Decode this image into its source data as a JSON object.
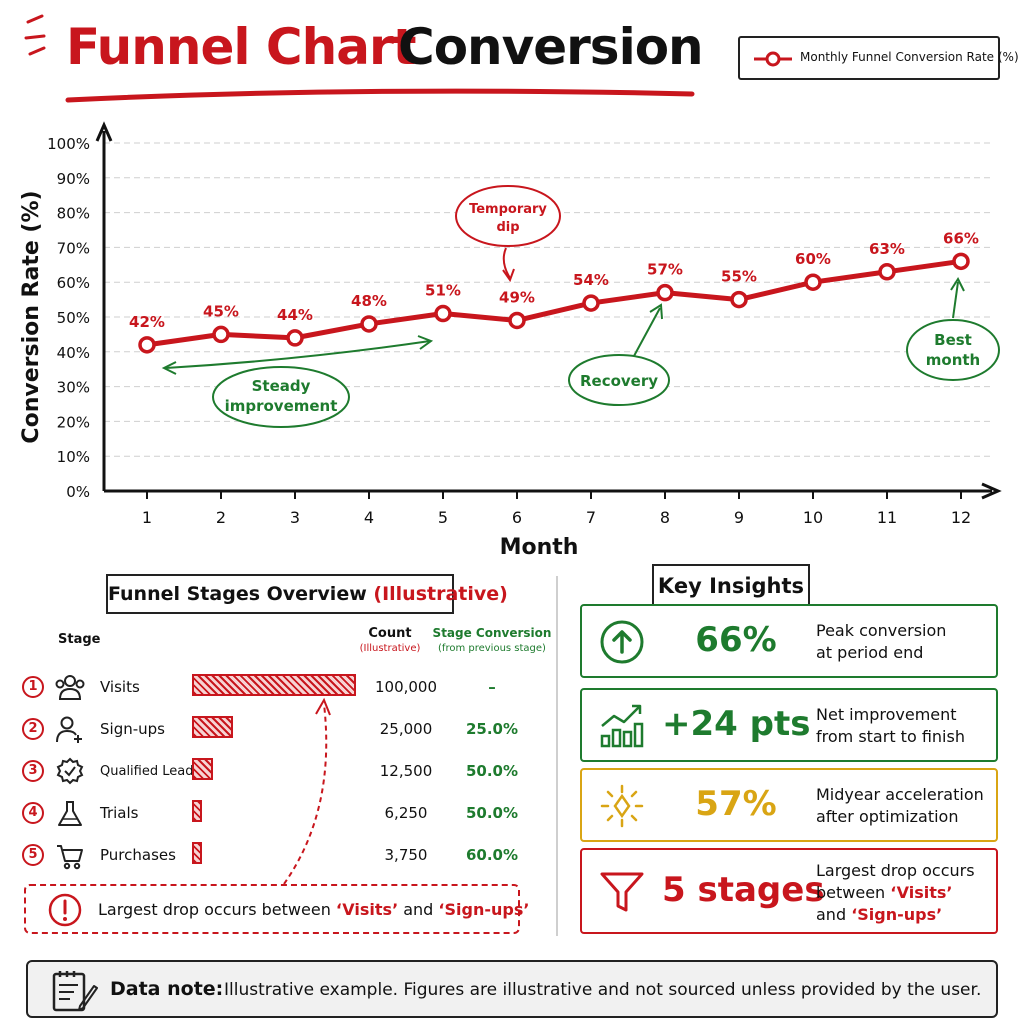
{
  "title": {
    "part1": "Funnel Chart",
    "part2": "Conversion"
  },
  "legend": {
    "label": "Monthly Funnel Conversion Rate (%)"
  },
  "colors": {
    "accent": "#c8161d",
    "green": "#1e7b2e",
    "gold": "#d9a514",
    "ink": "#111111"
  },
  "chart_data": {
    "type": "line",
    "x": [
      1,
      2,
      3,
      4,
      5,
      6,
      7,
      8,
      9,
      10,
      11,
      12
    ],
    "series": [
      {
        "name": "Monthly Funnel Conversion Rate (%)",
        "values": [
          42,
          45,
          44,
          48,
          51,
          49,
          54,
          57,
          55,
          60,
          63,
          66
        ]
      }
    ],
    "data_labels": [
      "42%",
      "45%",
      "44%",
      "48%",
      "51%",
      "49%",
      "54%",
      "57%",
      "55%",
      "60%",
      "63%",
      "66%"
    ],
    "xlabel": "Month",
    "ylabel": "Conversion Rate (%)",
    "ylim": [
      0,
      100
    ],
    "yticks": [
      "0%",
      "10%",
      "20%",
      "30%",
      "40%",
      "50%",
      "60%",
      "70%",
      "80%",
      "90%",
      "100%"
    ],
    "grid": true,
    "legend_position": "top-right",
    "annotations": [
      {
        "text_line1": "Steady",
        "text_line2": "improvement",
        "color": "green"
      },
      {
        "text_line1": "Temporary",
        "text_line2": "dip",
        "color": "red"
      },
      {
        "text_line1": "Recovery",
        "text_line2": "",
        "color": "green"
      },
      {
        "text_line1": "Best",
        "text_line2": "month",
        "color": "green"
      }
    ]
  },
  "funnel": {
    "title": "Funnel Stages Overview",
    "title_suffix": "(Illustrative)",
    "col_stage": "Stage",
    "col_count": "Count",
    "col_count_sub": "(Illustrative)",
    "col_conv": "Stage Conversion",
    "col_conv_sub": "(from previous stage)",
    "stages": [
      {
        "num": "1",
        "label": "Visits",
        "count": "100,000",
        "conv": "–",
        "icon": "users-icon",
        "value": 100000
      },
      {
        "num": "2",
        "label": "Sign-ups",
        "count": "25,000",
        "conv": "25.0%",
        "icon": "add-user-icon",
        "value": 25000
      },
      {
        "num": "3",
        "label": "Qualified Leads",
        "count": "12,500",
        "conv": "50.0%",
        "icon": "badge-check-icon",
        "value": 12500
      },
      {
        "num": "4",
        "label": "Trials",
        "count": "6,250",
        "conv": "50.0%",
        "icon": "flask-icon",
        "value": 6250
      },
      {
        "num": "5",
        "label": "Purchases",
        "count": "3,750",
        "conv": "60.0%",
        "icon": "cart-icon",
        "value": 3750
      }
    ],
    "note_pre": "Largest drop occurs between ",
    "note_a": "‘Visits’",
    "note_mid": " and ",
    "note_b": "‘Sign-ups’"
  },
  "insights": {
    "title": "Key Insights",
    "cards": [
      {
        "value": "66%",
        "line1": "Peak conversion",
        "line2": "at period end",
        "icon": "arrow-up-circle-icon",
        "color": "#1e7b2e"
      },
      {
        "value": "+24 pts",
        "line1": "Net improvement",
        "line2": "from start to finish",
        "icon": "growth-bars-icon",
        "color": "#1e7b2e"
      },
      {
        "value": "57%",
        "line1": "Midyear acceleration",
        "line2": "after optimization",
        "icon": "lightbulb-icon",
        "color": "#d9a514"
      },
      {
        "value": "5 stages",
        "line1": "Largest drop occurs",
        "line2a": "between ",
        "line2b": "‘Visits’",
        "line3a": "and ",
        "line3b": "‘Sign-ups’",
        "icon": "funnel-icon",
        "color": "#c8161d"
      }
    ]
  },
  "note": {
    "label": "Data note:",
    "text": "Illustrative example. Figures are illustrative and not sourced unless provided by the user."
  }
}
